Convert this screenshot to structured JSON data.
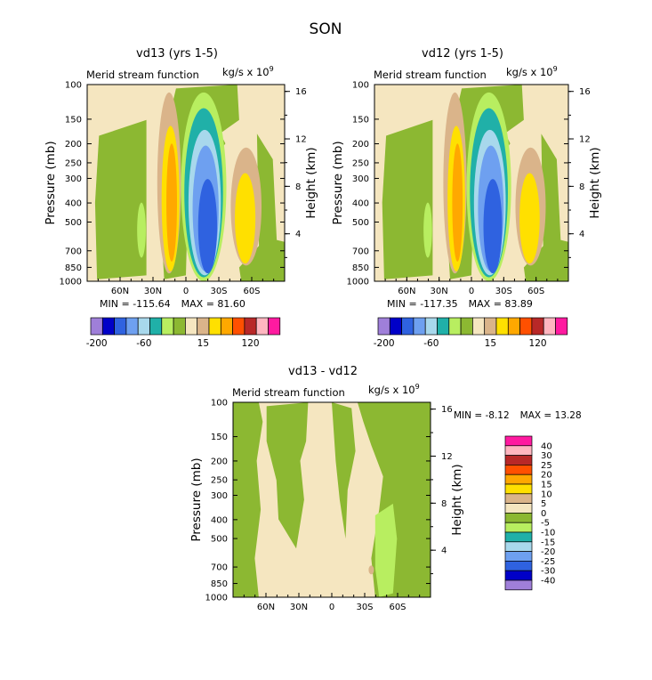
{
  "figure_title": "SON",
  "chart_data": [
    {
      "type": "heatmap",
      "title": "vd13 (yrs 1-5)",
      "subtitle": "Merid stream function",
      "units": "kg/s x 10",
      "units_exponent": "9",
      "ylabel": "Pressure (mb)",
      "ylabel_right": "Height (km)",
      "x_ticks": [
        "60N",
        "30N",
        "0",
        "30S",
        "60S"
      ],
      "y_ticks": [
        "100",
        "150",
        "200",
        "250",
        "300",
        "400",
        "500",
        "700",
        "850",
        "1000"
      ],
      "y_ticks_right": [
        "16",
        "12",
        "8",
        "4"
      ],
      "min": "-115.64",
      "max": "81.60",
      "min_label": "MIN =",
      "max_label": "MAX =",
      "colorbar_labels": [
        "-200",
        "-60",
        "15",
        "120"
      ],
      "colors": [
        "#9f7fd9",
        "#0000c8",
        "#2f62e0",
        "#6ea0f0",
        "#a8d8ec",
        "#20b0a8",
        "#b8ee60",
        "#8cb832",
        "#f5e6c0",
        "#dab48a",
        "#ffe000",
        "#ffa800",
        "#ff5000",
        "#b82828",
        "#ffb6c0",
        "#ff1aa0"
      ],
      "contour_features": [
        {
          "name": "southern-hemisphere cell",
          "value": -115.64,
          "level_range": "below -60"
        },
        {
          "name": "northern-hemisphere cell",
          "value": 81.6,
          "level_range": "above 15"
        }
      ]
    },
    {
      "type": "heatmap",
      "title": "vd12 (yrs 1-5)",
      "subtitle": "Merid stream function",
      "units": "kg/s x 10",
      "units_exponent": "9",
      "ylabel": "Pressure (mb)",
      "ylabel_right": "Height (km)",
      "x_ticks": [
        "60N",
        "30N",
        "0",
        "30S",
        "60S"
      ],
      "y_ticks": [
        "100",
        "150",
        "200",
        "250",
        "300",
        "400",
        "500",
        "700",
        "850",
        "1000"
      ],
      "y_ticks_right": [
        "16",
        "12",
        "8",
        "4"
      ],
      "min": "-117.35",
      "max": "83.89",
      "min_label": "MIN =",
      "max_label": "MAX =",
      "colorbar_labels": [
        "-200",
        "-60",
        "15",
        "120"
      ],
      "colors": [
        "#9f7fd9",
        "#0000c8",
        "#2f62e0",
        "#6ea0f0",
        "#a8d8ec",
        "#20b0a8",
        "#b8ee60",
        "#8cb832",
        "#f5e6c0",
        "#dab48a",
        "#ffe000",
        "#ffa800",
        "#ff5000",
        "#b82828",
        "#ffb6c0",
        "#ff1aa0"
      ],
      "contour_features": [
        {
          "name": "southern-hemisphere cell",
          "value": -117.35,
          "level_range": "below -60"
        },
        {
          "name": "northern-hemisphere cell",
          "value": 83.89,
          "level_range": "above 15"
        }
      ]
    },
    {
      "type": "heatmap",
      "title": "vd13 - vd12",
      "subtitle": "Merid stream function",
      "units": "kg/s x 10",
      "units_exponent": "9",
      "ylabel": "Pressure (mb)",
      "ylabel_right": "Height (km)",
      "x_ticks": [
        "60N",
        "30N",
        "0",
        "30S",
        "60S"
      ],
      "y_ticks": [
        "100",
        "150",
        "200",
        "250",
        "300",
        "400",
        "500",
        "700",
        "850",
        "1000"
      ],
      "y_ticks_right": [
        "16",
        "12",
        "8",
        "4"
      ],
      "min": "-8.12",
      "max": "13.28",
      "min_label": "MIN =",
      "max_label": "MAX =",
      "legend_levels": [
        "40",
        "30",
        "25",
        "20",
        "15",
        "10",
        "5",
        "0",
        "-5",
        "-10",
        "-15",
        "-20",
        "-25",
        "-30",
        "-40"
      ],
      "legend_colors": [
        "#ff1aa0",
        "#ffb6c0",
        "#b82828",
        "#ff5000",
        "#ffa800",
        "#ffe000",
        "#dab48a",
        "#f5e6c0",
        "#8cb832",
        "#b8ee60",
        "#20b0a8",
        "#a8d8ec",
        "#6ea0f0",
        "#2f62e0",
        "#0000c8",
        "#9f7fd9"
      ],
      "contour_features": [
        {
          "name": "difference minimum",
          "value": -8.12
        },
        {
          "name": "difference maximum",
          "value": 13.28
        }
      ]
    }
  ]
}
